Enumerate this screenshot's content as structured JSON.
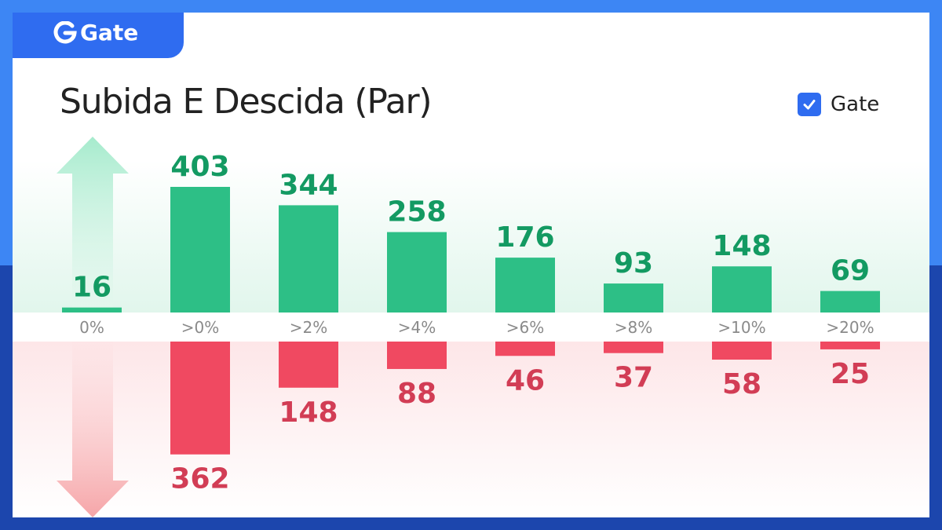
{
  "brand": {
    "name": "Gate"
  },
  "legend": {
    "label": "Gate",
    "checked": true
  },
  "chart_data": {
    "type": "bar",
    "title": "Subida E Descida (Par)",
    "categories": [
      "0%",
      ">0%",
      ">2%",
      ">4%",
      ">6%",
      ">8%",
      ">10%",
      ">20%"
    ],
    "series": [
      {
        "values": [
          16,
          403,
          344,
          258,
          176,
          93,
          148,
          69
        ],
        "color": "#2dbf86",
        "label_color": "#139a62",
        "direction": "up",
        "icon": "up-arrow-icon"
      },
      {
        "values": [
          0,
          362,
          148,
          88,
          46,
          37,
          58,
          25
        ],
        "color": "#f04961",
        "label_color": "#d23d55",
        "direction": "down",
        "icon": "down-arrow-icon"
      }
    ],
    "ylim": [
      0,
      403
    ]
  }
}
